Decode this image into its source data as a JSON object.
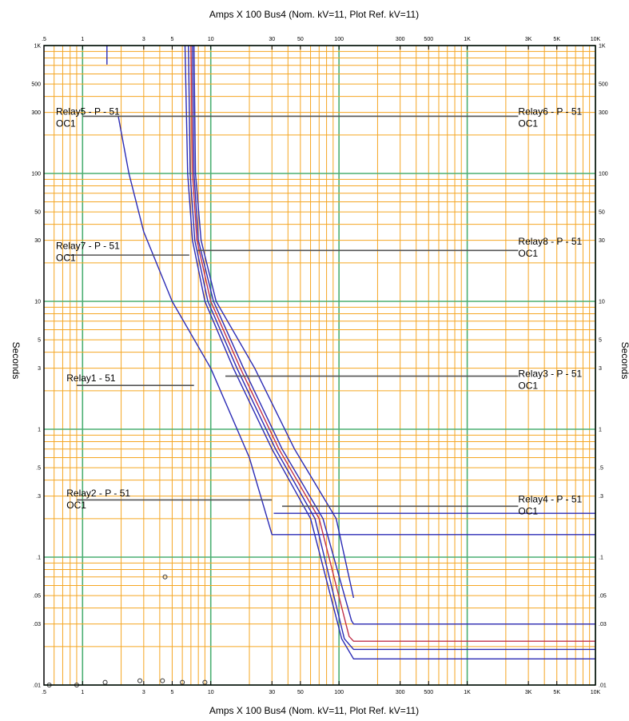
{
  "chart_data": {
    "type": "line",
    "title_top": "Amps  X  100   Bus4 (Nom. kV=11, Plot Ref. kV=11)",
    "title_bottom": "Amps  X  100   Bus4 (Nom. kV=11, Plot Ref. kV=11)",
    "ylabel": "Seconds",
    "x_scale": "log",
    "y_scale": "log",
    "xlim": [
      0.5,
      10000
    ],
    "ylim": [
      0.01,
      1000
    ],
    "x_ticks": [
      {
        "v": 0.5,
        "label": ".5"
      },
      {
        "v": 1,
        "label": "1"
      },
      {
        "v": 3,
        "label": "3"
      },
      {
        "v": 5,
        "label": "5"
      },
      {
        "v": 10,
        "label": "10"
      },
      {
        "v": 30,
        "label": "30"
      },
      {
        "v": 50,
        "label": "50"
      },
      {
        "v": 100,
        "label": "100"
      },
      {
        "v": 300,
        "label": "300"
      },
      {
        "v": 500,
        "label": "500"
      },
      {
        "v": 1000,
        "label": "1K"
      },
      {
        "v": 3000,
        "label": "3K"
      },
      {
        "v": 5000,
        "label": "5K"
      },
      {
        "v": 10000,
        "label": "10K"
      }
    ],
    "y_ticks": [
      {
        "v": 1000,
        "label": "1K"
      },
      {
        "v": 500,
        "label": "500"
      },
      {
        "v": 300,
        "label": "300"
      },
      {
        "v": 100,
        "label": "100"
      },
      {
        "v": 50,
        "label": "50"
      },
      {
        "v": 30,
        "label": "30"
      },
      {
        "v": 10,
        "label": "10"
      },
      {
        "v": 5,
        "label": "5"
      },
      {
        "v": 3,
        "label": "3"
      },
      {
        "v": 1,
        "label": "1"
      },
      {
        "v": 0.5,
        "label": ".5"
      },
      {
        "v": 0.3,
        "label": ".3"
      },
      {
        "v": 0.1,
        "label": ".1"
      },
      {
        "v": 0.05,
        "label": ".05"
      },
      {
        "v": 0.03,
        "label": ".03"
      },
      {
        "v": 0.01,
        "label": ".01"
      }
    ],
    "grid": true,
    "colors": {
      "minor_grid": "#f5a623",
      "decade_grid": "#4caf72",
      "curve": "#2b2bb5",
      "curve_alt": "#c0304a",
      "leader": "#555555"
    },
    "series": [
      {
        "color": "#2b2bb5",
        "points": [
          [
            1.9,
            280
          ],
          [
            2.3,
            100
          ],
          [
            3.0,
            35
          ],
          [
            5.0,
            10
          ],
          [
            10,
            3.0
          ],
          [
            20,
            0.6
          ],
          [
            30,
            0.15
          ],
          [
            130,
            0.15
          ],
          [
            10000,
            0.15
          ]
        ]
      },
      {
        "color": "#2b2bb5",
        "points": [
          [
            6.3,
            1000
          ],
          [
            6.6,
            100
          ],
          [
            7.2,
            30
          ],
          [
            9,
            10
          ],
          [
            15,
            3
          ],
          [
            30,
            0.7
          ],
          [
            60,
            0.2
          ],
          [
            105,
            0.023
          ],
          [
            130,
            0.016
          ],
          [
            10000,
            0.016
          ]
        ]
      },
      {
        "color": "#2b2bb5",
        "points": [
          [
            6.7,
            1000
          ],
          [
            6.9,
            100
          ],
          [
            7.5,
            30
          ],
          [
            9.5,
            10
          ],
          [
            16,
            3
          ],
          [
            32,
            0.7
          ],
          [
            65,
            0.2
          ],
          [
            110,
            0.023
          ],
          [
            130,
            0.019
          ],
          [
            10000,
            0.019
          ]
        ]
      },
      {
        "color": "#c0304a",
        "points": [
          [
            7.0,
            1000
          ],
          [
            7.2,
            100
          ],
          [
            7.8,
            30
          ],
          [
            10,
            10
          ],
          [
            17,
            3
          ],
          [
            34,
            0.7
          ],
          [
            70,
            0.2
          ],
          [
            120,
            0.024
          ],
          [
            130,
            0.022
          ],
          [
            10000,
            0.022
          ]
        ]
      },
      {
        "color": "#2b2bb5",
        "points": [
          [
            7.2,
            1000
          ],
          [
            7.4,
            100
          ],
          [
            8.0,
            30
          ],
          [
            10.5,
            10
          ],
          [
            18,
            3
          ],
          [
            36,
            0.7
          ],
          [
            75,
            0.2
          ],
          [
            125,
            0.032
          ],
          [
            130,
            0.03
          ],
          [
            10000,
            0.03
          ]
        ]
      },
      {
        "color": "#2b2bb5",
        "points": [
          [
            7.4,
            1000
          ],
          [
            7.6,
            100
          ],
          [
            8.4,
            30
          ],
          [
            11,
            10
          ],
          [
            22,
            3
          ],
          [
            45,
            0.7
          ],
          [
            95,
            0.2
          ],
          [
            130,
            0.048
          ],
          [
            130,
            0.048
          ]
        ]
      },
      {
        "color": "#2b2bb5",
        "points": [
          [
            31,
            0.22
          ],
          [
            10000,
            0.22
          ]
        ]
      },
      {
        "color": "#2b2bb5",
        "points": [
          [
            1.55,
            1000
          ],
          [
            1.55,
            710
          ]
        ]
      }
    ],
    "leaders": [
      {
        "x1": 1.0,
        "x2": 7.6,
        "y": 280
      },
      {
        "x1": 7.6,
        "x2": 2500,
        "y": 280
      },
      {
        "x1": 0.75,
        "x2": 6.8,
        "y": 23
      },
      {
        "x1": 7.9,
        "x2": 2500,
        "y": 25
      },
      {
        "x1": 0.9,
        "x2": 7.4,
        "y": 2.2
      },
      {
        "x1": 13,
        "x2": 2500,
        "y": 2.6
      },
      {
        "x1": 0.9,
        "x2": 30,
        "y": 0.28
      },
      {
        "x1": 36,
        "x2": 2500,
        "y": 0.25
      }
    ],
    "markers": [
      {
        "x": 0.55,
        "y": 0.01
      },
      {
        "x": 0.9,
        "y": 0.01
      },
      {
        "x": 1.5,
        "y": 0.0105
      },
      {
        "x": 2.8,
        "y": 0.0108
      },
      {
        "x": 4.2,
        "y": 0.0108
      },
      {
        "x": 6.0,
        "y": 0.0105
      },
      {
        "x": 9.0,
        "y": 0.0105
      },
      {
        "x": 4.4,
        "y": 0.07
      }
    ],
    "device_labels": [
      {
        "id": "r5",
        "x": 0.62,
        "y": 280,
        "line1": "Relay5 - P - 51",
        "line2": "OC1"
      },
      {
        "id": "r6",
        "x": 2500,
        "y": 280,
        "line1": "Relay6 - P - 51",
        "line2": "OC1"
      },
      {
        "id": "r7",
        "x": 0.62,
        "y": 25,
        "line1": "Relay7 - P - 51",
        "line2": "OC1"
      },
      {
        "id": "r8",
        "x": 2500,
        "y": 27,
        "line1": "Relay8 - P - 51",
        "line2": "OC1"
      },
      {
        "id": "r1",
        "x": 0.75,
        "y": 2.3,
        "line1": "Relay1 - 51",
        "line2": ""
      },
      {
        "id": "r3",
        "x": 2500,
        "y": 2.5,
        "line1": "Relay3 - P - 51",
        "line2": "OC1"
      },
      {
        "id": "r2",
        "x": 0.75,
        "y": 0.29,
        "line1": "Relay2 - P - 51",
        "line2": "OC1"
      },
      {
        "id": "r4",
        "x": 2500,
        "y": 0.26,
        "line1": "Relay4 - P - 51",
        "line2": "OC1"
      }
    ]
  }
}
